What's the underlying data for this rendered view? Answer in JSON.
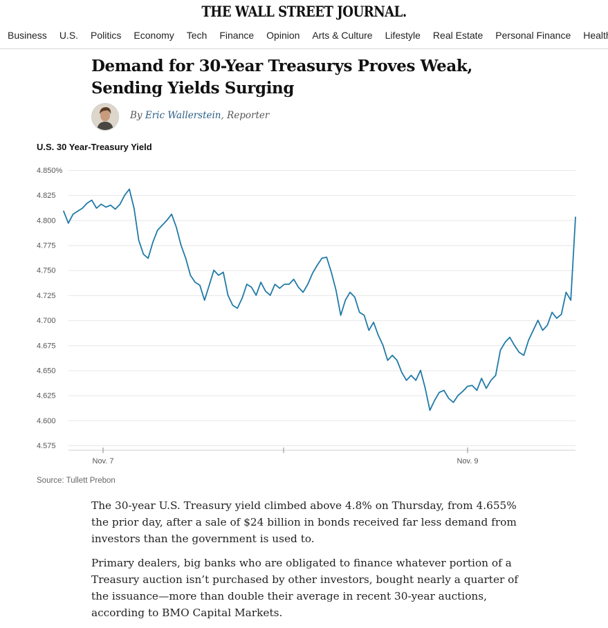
{
  "masthead": "THE WALL STREET JOURNAL.",
  "nav": [
    "Business",
    "U.S.",
    "Politics",
    "Economy",
    "Tech",
    "Finance",
    "Opinion",
    "Arts & Culture",
    "Lifestyle",
    "Real Estate",
    "Personal Finance",
    "Health"
  ],
  "article": {
    "headline": "Demand for 30-Year Treasurys Proves Weak, Sending Yields Surging",
    "byline_prefix": "By ",
    "author": "Eric Wallerstein",
    "author_role": ", Reporter",
    "paragraphs": [
      "The 30-year U.S. Treasury yield climbed above 4.8% on Thursday, from 4.655% the prior day, after a sale of $24 billion in bonds received far less demand from investors than the government is used to.",
      "Primary dealers, big banks who are obligated to finance whatever portion of a Treasury auction isn’t purchased by other investors, bought nearly a quarter of the issuance—more than double their average in recent 30-year auctions, according to BMO Capital Markets."
    ]
  },
  "colors": {
    "line": "#1f7aa6",
    "author_link": "#2a5d84"
  },
  "chart_data": {
    "type": "line",
    "title": "U.S. 30 Year-Treasury Yield",
    "source": "Source: Tullett Prebon",
    "ylim": [
      4.575,
      4.85
    ],
    "yticks": [
      "4.850%",
      "4.825",
      "4.800",
      "4.775",
      "4.750",
      "4.725",
      "4.700",
      "4.675",
      "4.650",
      "4.625",
      "4.600",
      "4.575"
    ],
    "xticks": [
      "Nov. 7",
      "Nov. 9"
    ],
    "grid": true,
    "series": [
      {
        "values": [
          4.809,
          4.797,
          4.806,
          4.809,
          4.812,
          4.817,
          4.82,
          4.812,
          4.816,
          4.813,
          4.815,
          4.811,
          4.816,
          4.825,
          4.831,
          4.812,
          4.78,
          4.766,
          4.762,
          4.778,
          4.79,
          4.795,
          4.8,
          4.806,
          4.793,
          4.775,
          4.762,
          4.745,
          4.738,
          4.735,
          4.72,
          4.735,
          4.75,
          4.745,
          4.748,
          4.725,
          4.715,
          4.712,
          4.722,
          4.736,
          4.733,
          4.725,
          4.738,
          4.729,
          4.725,
          4.736,
          4.732,
          4.736,
          4.736,
          4.741,
          4.733,
          4.728,
          4.736,
          4.747,
          4.755,
          4.762,
          4.763,
          4.748,
          4.73,
          4.705,
          4.72,
          4.728,
          4.723,
          4.708,
          4.705,
          4.69,
          4.698,
          4.685,
          4.675,
          4.66,
          4.665,
          4.66,
          4.648,
          4.64,
          4.645,
          4.64,
          4.65,
          4.632,
          4.61,
          4.62,
          4.628,
          4.63,
          4.622,
          4.618,
          4.625,
          4.629,
          4.634,
          4.635,
          4.63,
          4.642,
          4.632,
          4.64,
          4.645,
          4.67,
          4.678,
          4.683,
          4.675,
          4.668,
          4.665,
          4.68,
          4.69,
          4.7,
          4.69,
          4.695,
          4.708,
          4.702,
          4.706,
          4.728,
          4.72,
          4.803
        ]
      }
    ]
  }
}
